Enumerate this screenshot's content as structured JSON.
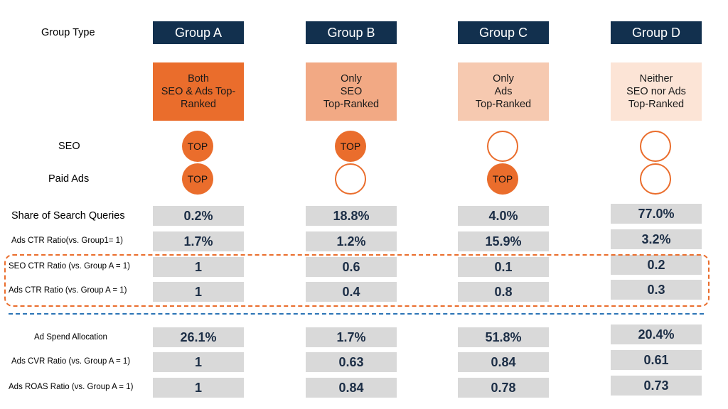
{
  "row_labels": {
    "group_type": "Group Type",
    "seo": "SEO",
    "paid_ads": "Paid Ads",
    "share": "Share of Search Queries",
    "ads_ctr_ratio_group1": "Ads CTR Ratio(vs. Group1= 1)",
    "seo_ctr_ratio": "SEO CTR Ratio (vs. Group A = 1)",
    "ads_ctr_ratio": "Ads CTR Ratio (vs. Group A = 1)",
    "ad_spend": "Ad Spend Allocation",
    "ads_cvr_ratio": "Ads CVR Ratio (vs. Group A = 1)",
    "ads_roas_ratio": "Ads ROAS Ratio (vs. Group A = 1)"
  },
  "colors": {
    "header_bg": "#12304e",
    "accent": "#ea6d2c",
    "desc_a": "#ea6d2c",
    "desc_b": "#f2a984",
    "desc_c": "#f6c9b0",
    "desc_d": "#fce4d6",
    "cell_bg": "#d9d9d9",
    "divider": "#2c74b6"
  },
  "groups": [
    {
      "header": "Group A",
      "desc": "Both\nSEO & Ads Top-\nRanked",
      "seo": "TOP",
      "ads": "TOP",
      "share": "0.2%",
      "ads_ctr_g1": "1.7%",
      "seo_ctr": "1",
      "ads_ctr": "1",
      "ad_spend": "26.1%",
      "ads_cvr": "1",
      "ads_roas": "1"
    },
    {
      "header": "Group B",
      "desc": "Only\nSEO\nTop-Ranked",
      "seo": "TOP",
      "ads": "",
      "share": "18.8%",
      "ads_ctr_g1": "1.2%",
      "seo_ctr": "0.6",
      "ads_ctr": "0.4",
      "ad_spend": "1.7%",
      "ads_cvr": "0.63",
      "ads_roas": "0.84"
    },
    {
      "header": "Group C",
      "desc": "Only\nAds\nTop-Ranked",
      "seo": "",
      "ads": "TOP",
      "share": "4.0%",
      "ads_ctr_g1": "15.9%",
      "seo_ctr": "0.1",
      "ads_ctr": "0.8",
      "ad_spend": "51.8%",
      "ads_cvr": "0.84",
      "ads_roas": "0.78"
    },
    {
      "header": "Group D",
      "desc": "Neither\nSEO nor Ads\nTop-Ranked",
      "seo": "",
      "ads": "",
      "share": "77.0%",
      "ads_ctr_g1": "3.2%",
      "seo_ctr": "0.2",
      "ads_ctr": "0.3",
      "ad_spend": "20.4%",
      "ads_cvr": "0.61",
      "ads_roas": "0.73"
    }
  ]
}
